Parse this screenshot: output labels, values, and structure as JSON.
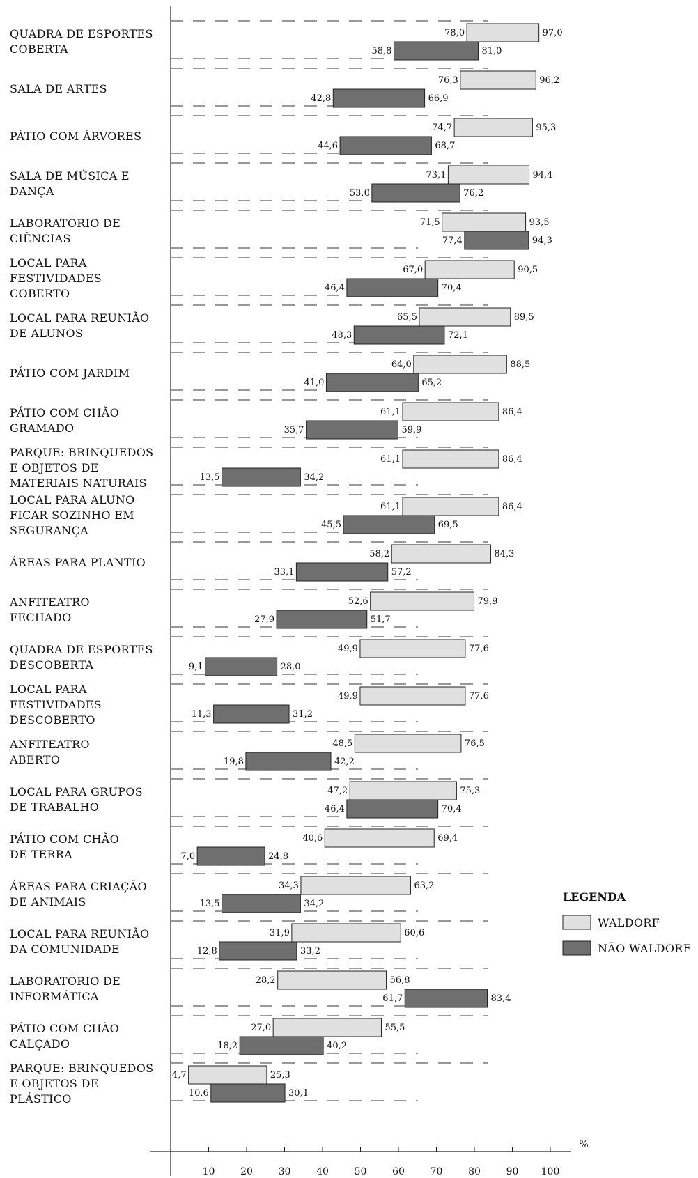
{
  "chart_data": {
    "type": "bar",
    "orientation": "horizontal-range",
    "x_unit": "%",
    "xlim": [
      0,
      100
    ],
    "x_ticks": [
      10,
      20,
      30,
      40,
      50,
      60,
      70,
      80,
      90,
      100
    ],
    "legend": {
      "title": "LEGENDA",
      "placement": "right",
      "entries": [
        {
          "name": "WALDORF",
          "color": "#e0e0e0"
        },
        {
          "name": "NÃO WALDORF",
          "color": "#6f6f6f"
        }
      ]
    },
    "series_colors": {
      "waldorf": "#e0e0e0",
      "nao_waldorf": "#6f6f6f"
    },
    "categories": [
      {
        "label": [
          "QUADRA DE ESPORTES",
          "COBERTA"
        ],
        "waldorf": [
          78.0,
          97.0
        ],
        "nao_waldorf": [
          58.8,
          81.0
        ],
        "waldorf_labels": [
          "78,0",
          "97,0"
        ],
        "nao_waldorf_labels": [
          "58,8",
          "81,0"
        ]
      },
      {
        "label": [
          "SALA DE ARTES"
        ],
        "waldorf": [
          76.3,
          96.2
        ],
        "nao_waldorf": [
          42.8,
          66.9
        ],
        "waldorf_labels": [
          "76,3",
          "96,2"
        ],
        "nao_waldorf_labels": [
          "42,8",
          "66,9"
        ]
      },
      {
        "label": [
          "PÁTIO COM ÁRVORES"
        ],
        "waldorf": [
          74.7,
          95.3
        ],
        "nao_waldorf": [
          44.6,
          68.7
        ],
        "waldorf_labels": [
          "74,7",
          "95,3"
        ],
        "nao_waldorf_labels": [
          "44,6",
          "68,7"
        ]
      },
      {
        "label": [
          "SALA DE MÚSICA E",
          "DANÇA"
        ],
        "waldorf": [
          73.1,
          94.4
        ],
        "nao_waldorf": [
          53.0,
          76.2
        ],
        "waldorf_labels": [
          "73,1",
          "94,4"
        ],
        "nao_waldorf_labels": [
          "53,0",
          "76,2"
        ]
      },
      {
        "label": [
          "LABORATÓRIO DE",
          "CIÊNCIAS"
        ],
        "waldorf": [
          71.5,
          93.5
        ],
        "nao_waldorf": [
          77.4,
          94.3
        ],
        "waldorf_labels": [
          "71,5",
          "93,5"
        ],
        "nao_waldorf_labels": [
          "77,4",
          "94,3"
        ]
      },
      {
        "label": [
          "LOCAL PARA",
          "FESTIVIDADES",
          "COBERTO"
        ],
        "waldorf": [
          67.0,
          90.5
        ],
        "nao_waldorf": [
          46.4,
          70.4
        ],
        "waldorf_labels": [
          "67,0",
          "90,5"
        ],
        "nao_waldorf_labels": [
          "46,4",
          "70,4"
        ]
      },
      {
        "label": [
          "LOCAL PARA REUNIÃO",
          "DE ALUNOS"
        ],
        "waldorf": [
          65.5,
          89.5
        ],
        "nao_waldorf": [
          48.3,
          72.1
        ],
        "waldorf_labels": [
          "65,5",
          "89,5"
        ],
        "nao_waldorf_labels": [
          "48,3",
          "72,1"
        ]
      },
      {
        "label": [
          "PÁTIO COM  JARDIM"
        ],
        "waldorf": [
          64.0,
          88.5
        ],
        "nao_waldorf": [
          41.0,
          65.2
        ],
        "waldorf_labels": [
          "64,0",
          "88,5"
        ],
        "nao_waldorf_labels": [
          "41,0",
          "65,2"
        ]
      },
      {
        "label": [
          "PÁTIO COM CHÃO",
          "GRAMADO"
        ],
        "waldorf": [
          61.1,
          86.4
        ],
        "nao_waldorf": [
          35.7,
          59.9
        ],
        "waldorf_labels": [
          "61,1",
          "86,4"
        ],
        "nao_waldorf_labels": [
          "35,7",
          "59,9"
        ]
      },
      {
        "label": [
          "PARQUE: BRINQUEDOS",
          "E OBJETOS DE",
          "MATERIAIS NATURAIS"
        ],
        "waldorf": [
          61.1,
          86.4
        ],
        "nao_waldorf": [
          13.5,
          34.2
        ],
        "waldorf_labels": [
          "61,1",
          "86,4"
        ],
        "nao_waldorf_labels": [
          "13,5",
          "34,2"
        ]
      },
      {
        "label": [
          "LOCAL PARA ALUNO",
          "FICAR SOZINHO EM",
          "SEGURANÇA"
        ],
        "waldorf": [
          61.1,
          86.4
        ],
        "nao_waldorf": [
          45.5,
          69.5
        ],
        "waldorf_labels": [
          "61,1",
          "86,4"
        ],
        "nao_waldorf_labels": [
          "45,5",
          "69,5"
        ]
      },
      {
        "label": [
          "ÁREAS PARA PLANTIO"
        ],
        "waldorf": [
          58.2,
          84.3
        ],
        "nao_waldorf": [
          33.1,
          57.2
        ],
        "waldorf_labels": [
          "58,2",
          "84,3"
        ],
        "nao_waldorf_labels": [
          "33,1",
          "57,2"
        ]
      },
      {
        "label": [
          "ANFITEATRO",
          "FECHADO"
        ],
        "waldorf": [
          52.6,
          79.9
        ],
        "nao_waldorf": [
          27.9,
          51.7
        ],
        "waldorf_labels": [
          "52,6",
          "79,9"
        ],
        "nao_waldorf_labels": [
          "27,9",
          "51,7"
        ]
      },
      {
        "label": [
          "QUADRA DE ESPORTES",
          "DESCOBERTA"
        ],
        "waldorf": [
          49.9,
          77.6
        ],
        "nao_waldorf": [
          9.1,
          28.0
        ],
        "waldorf_labels": [
          "49,9",
          "77,6"
        ],
        "nao_waldorf_labels": [
          "9,1",
          "28,0"
        ]
      },
      {
        "label": [
          "LOCAL PARA",
          "FESTIVIDADES",
          "DESCOBERTO"
        ],
        "waldorf": [
          49.9,
          77.6
        ],
        "nao_waldorf": [
          11.3,
          31.2
        ],
        "waldorf_labels": [
          "49,9",
          "77,6"
        ],
        "nao_waldorf_labels": [
          "11,3",
          "31,2"
        ]
      },
      {
        "label": [
          "ANFITEATRO",
          "ABERTO"
        ],
        "waldorf": [
          48.5,
          76.5
        ],
        "nao_waldorf": [
          19.8,
          42.2
        ],
        "waldorf_labels": [
          "48,5",
          "76,5"
        ],
        "nao_waldorf_labels": [
          "19,8",
          "42,2"
        ]
      },
      {
        "label": [
          "LOCAL PARA GRUPOS",
          "DE TRABALHO"
        ],
        "waldorf": [
          47.2,
          75.3
        ],
        "nao_waldorf": [
          46.4,
          70.4
        ],
        "waldorf_labels": [
          "47,2",
          "75,3"
        ],
        "nao_waldorf_labels": [
          "46,4",
          "70,4"
        ]
      },
      {
        "label": [
          "PÁTIO COM CHÃO",
          "DE TERRA"
        ],
        "waldorf": [
          40.6,
          69.4
        ],
        "nao_waldorf": [
          7.0,
          24.8
        ],
        "waldorf_labels": [
          "40,6",
          "69,4"
        ],
        "nao_waldorf_labels": [
          "7,0",
          "24,8"
        ]
      },
      {
        "label": [
          "ÁREAS PARA CRIAÇÃO",
          "DE ANIMAIS"
        ],
        "waldorf": [
          34.3,
          63.2
        ],
        "nao_waldorf": [
          13.5,
          34.2
        ],
        "waldorf_labels": [
          "34,3",
          "63,2"
        ],
        "nao_waldorf_labels": [
          "13,5",
          "34,2"
        ]
      },
      {
        "label": [
          "LOCAL PARA REUNIÃO",
          "DA COMUNIDADE"
        ],
        "waldorf": [
          31.9,
          60.6
        ],
        "nao_waldorf": [
          12.8,
          33.2
        ],
        "waldorf_labels": [
          "31,9",
          "60,6"
        ],
        "nao_waldorf_labels": [
          "12,8",
          "33,2"
        ]
      },
      {
        "label": [
          "LABORATÓRIO DE",
          "INFORMÁTICA"
        ],
        "waldorf": [
          28.2,
          56.8
        ],
        "nao_waldorf": [
          61.7,
          83.4
        ],
        "waldorf_labels": [
          "28,2",
          "56,8"
        ],
        "nao_waldorf_labels": [
          "61,7",
          "83,4"
        ]
      },
      {
        "label": [
          "PÁTIO COM CHÃO",
          "CALÇADO"
        ],
        "waldorf": [
          27.0,
          55.5
        ],
        "nao_waldorf": [
          18.2,
          40.2
        ],
        "waldorf_labels": [
          "27,0",
          "55,5"
        ],
        "nao_waldorf_labels": [
          "18,2",
          "40,2"
        ]
      },
      {
        "label": [
          "PARQUE: BRINQUEDOS",
          "E OBJETOS DE",
          "PLÁSTICO"
        ],
        "waldorf": [
          4.7,
          25.3
        ],
        "nao_waldorf": [
          10.6,
          30.1
        ],
        "waldorf_labels": [
          "4,7",
          "25,3"
        ],
        "nao_waldorf_labels": [
          "10,6",
          "30,1"
        ]
      }
    ]
  }
}
